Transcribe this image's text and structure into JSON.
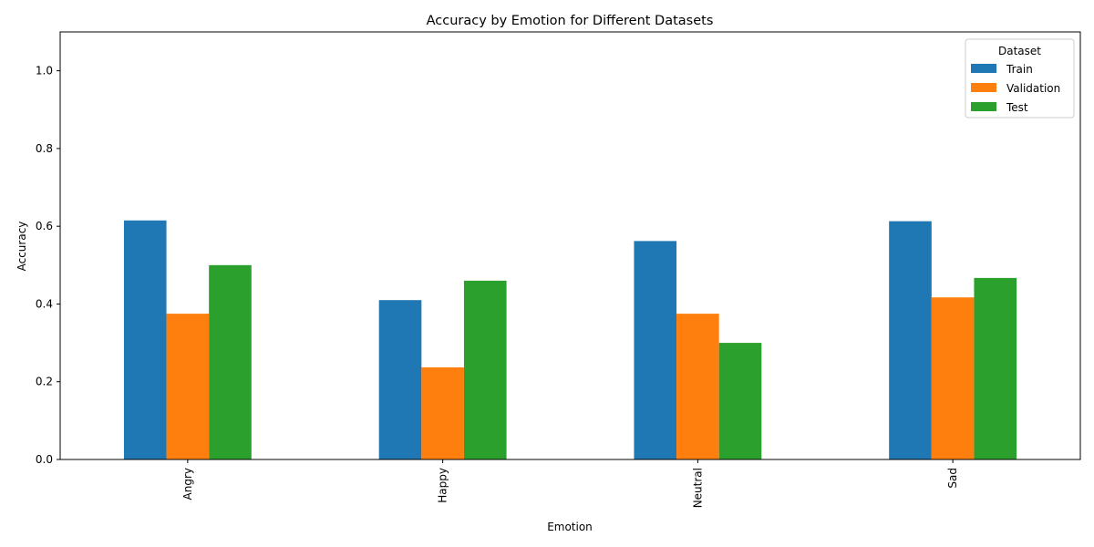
{
  "chart_data": {
    "type": "bar",
    "title": "Accuracy by Emotion for Different Datasets",
    "xlabel": "Emotion",
    "ylabel": "Accuracy",
    "categories": [
      "Angry",
      "Happy",
      "Neutral",
      "Sad"
    ],
    "series": [
      {
        "name": "Train",
        "values": [
          0.615,
          0.41,
          0.562,
          0.613
        ],
        "color": "#1f77b4"
      },
      {
        "name": "Validation",
        "values": [
          0.375,
          0.237,
          0.375,
          0.417
        ],
        "color": "#ff7f0e"
      },
      {
        "name": "Test",
        "values": [
          0.5,
          0.46,
          0.3,
          0.467
        ],
        "color": "#2ca02c"
      }
    ],
    "ylim": [
      0,
      1.1
    ],
    "yticks": [
      "0.0",
      "0.2",
      "0.4",
      "0.6",
      "0.8",
      "1.0"
    ],
    "legend": {
      "title": "Dataset",
      "position": "top-right"
    },
    "grid": false
  }
}
